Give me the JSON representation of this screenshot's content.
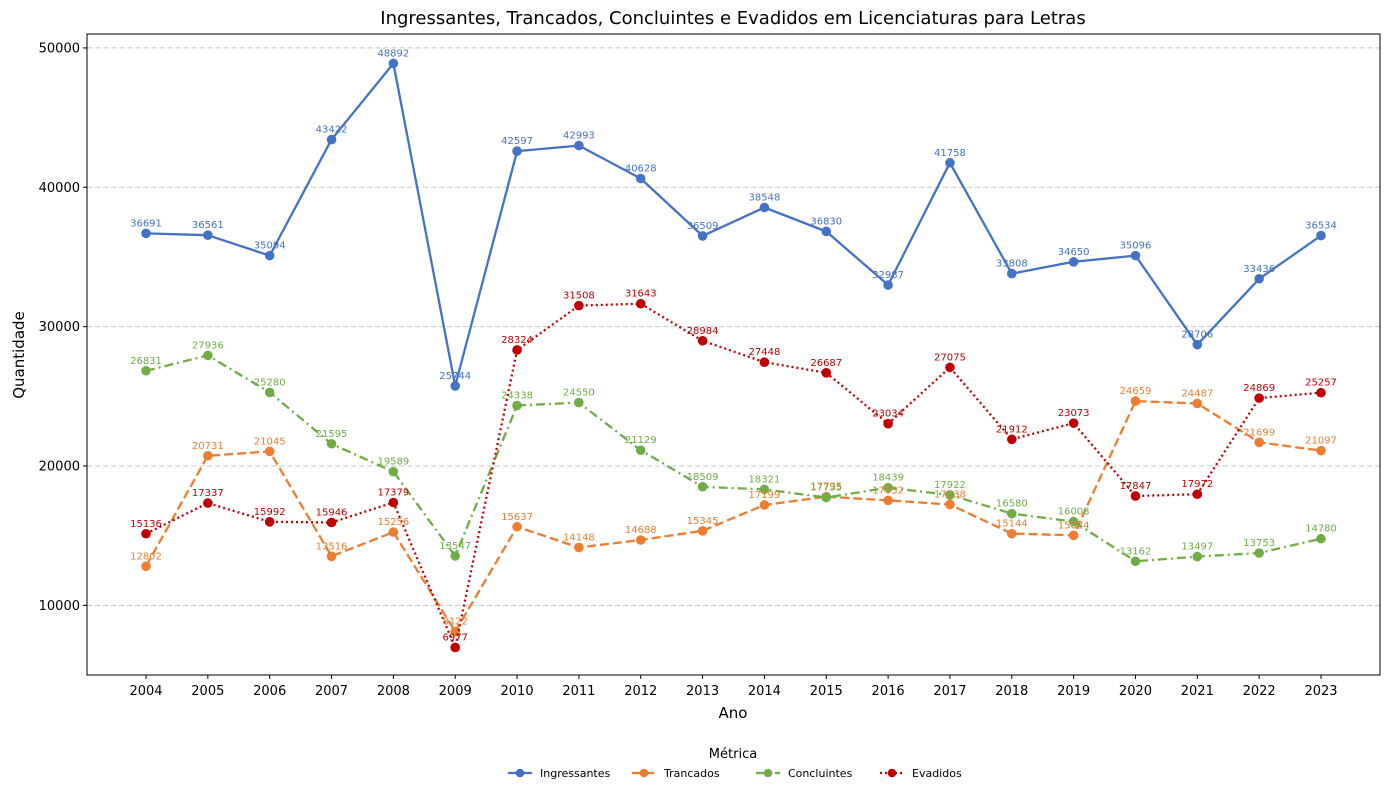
{
  "chart_data": {
    "type": "line",
    "title": "Ingressantes, Trancados, Concluintes e Evadidos em Licenciaturas para Letras",
    "xlabel": "Ano",
    "ylabel": "Quantidade",
    "ylim": [
      5000,
      51000
    ],
    "yticks": [
      10000,
      20000,
      30000,
      40000,
      50000
    ],
    "grid": "horizontal-dashed",
    "legend_title": "Métrica",
    "legend_position": "bottom-center",
    "x": [
      "2004",
      "2005",
      "2006",
      "2007",
      "2008",
      "2009",
      "2010",
      "2011",
      "2012",
      "2013",
      "2014",
      "2015",
      "2016",
      "2017",
      "2018",
      "2019",
      "2020",
      "2021",
      "2022",
      "2023"
    ],
    "series": [
      {
        "name": "Ingressantes",
        "color": "#4472c4",
        "style": "solid",
        "values": [
          36691,
          36561,
          35094,
          43422,
          48892,
          25744,
          42597,
          42993,
          40628,
          36509,
          38548,
          36830,
          32987,
          41758,
          33808,
          34650,
          35096,
          28706,
          33436,
          36534
        ]
      },
      {
        "name": "Trancados",
        "color": "#ed7d31",
        "style": "dashed",
        "values": [
          12802,
          20731,
          21045,
          13516,
          15256,
          8122,
          15637,
          14148,
          14688,
          15345,
          17199,
          17795,
          17532,
          17238,
          15144,
          15024,
          24659,
          24487,
          21699,
          21097
        ]
      },
      {
        "name": "Concluintes",
        "color": "#70ad47",
        "style": "dashdot",
        "values": [
          26831,
          27936,
          25280,
          21595,
          19589,
          13547,
          24338,
          24550,
          21129,
          18509,
          18321,
          17735,
          18439,
          17922,
          16580,
          16008,
          13162,
          13497,
          13753,
          14780
        ]
      },
      {
        "name": "Evadidos",
        "color": "#c00000",
        "style": "dotted",
        "values": [
          15136,
          17337,
          15992,
          15946,
          17379,
          6977,
          28324,
          31508,
          31643,
          28984,
          27448,
          26687,
          23034,
          27075,
          21912,
          23073,
          17847,
          17972,
          24869,
          25257
        ]
      }
    ]
  }
}
